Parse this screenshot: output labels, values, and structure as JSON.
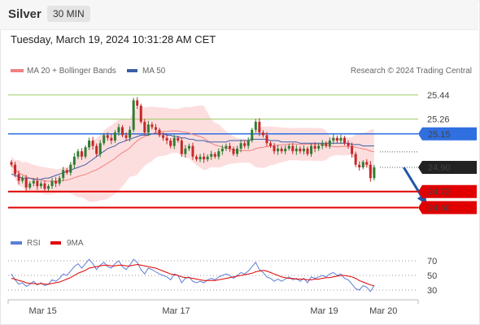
{
  "header": {
    "asset": "Silver",
    "timeframe": "30 MIN",
    "timestamp": "Tuesday, March 19, 2024 10:31:28 AM CET"
  },
  "legend": {
    "ma20": "MA 20 + Bollinger Bands",
    "ma50": "MA 50",
    "credit": "Research © 2024 Trading Central",
    "rsi": "RSI",
    "rsi_ma": "9MA"
  },
  "colors": {
    "ma20": "#f08080",
    "ma50": "#3b5fa8",
    "band": "#fdd8d8",
    "bull": "#2e7d32",
    "bear": "#c62828",
    "resistance": "#9ccc65",
    "pivot": "#2f6fe0",
    "support": "#e00000",
    "arrow": "#2356a8",
    "rsi": "#5b7fd6",
    "rsi_ma": "#e00000",
    "current": "#222222"
  },
  "chart_data": {
    "type": "candlestick",
    "title": "Silver 30 MIN",
    "x_ticks": [
      "Mar 15",
      "Mar 17",
      "Mar 19",
      "Mar 20"
    ],
    "x_tick_index": [
      8.5,
      44.5,
      84.5,
      100.5
    ],
    "ylim": [
      24.5,
      25.5
    ],
    "levels": [
      {
        "label": "25.44",
        "value": 25.44,
        "kind": "resistance"
      },
      {
        "label": "25.26",
        "value": 25.26,
        "kind": "resistance"
      },
      {
        "label": "25.15",
        "value": 25.15,
        "kind": "pivot"
      },
      {
        "label": "24.72",
        "value": 24.72,
        "kind": "support"
      },
      {
        "label": "24.60",
        "value": 24.6,
        "kind": "support"
      }
    ],
    "current_price": {
      "label": "24.90",
      "value": 24.9
    },
    "forecast_arrow": {
      "from_index": 106,
      "from": 24.9,
      "to_index": 112,
      "to": 24.63
    },
    "closes": [
      24.92,
      24.85,
      24.8,
      24.82,
      24.75,
      24.78,
      24.8,
      24.76,
      24.78,
      24.74,
      24.76,
      24.8,
      24.78,
      24.82,
      24.88,
      24.86,
      24.92,
      24.98,
      25.02,
      24.98,
      25.05,
      25.1,
      25.06,
      25.0,
      25.08,
      25.14,
      25.12,
      25.1,
      25.16,
      25.2,
      25.14,
      25.12,
      25.18,
      25.4,
      25.36,
      25.24,
      25.16,
      25.22,
      25.2,
      25.18,
      25.14,
      25.12,
      25.1,
      25.06,
      25.12,
      25.1,
      25.0,
      25.04,
      25.06,
      24.98,
      24.96,
      24.98,
      24.96,
      24.98,
      25.0,
      24.98,
      25.02,
      25.04,
      25.06,
      25.04,
      25.0,
      25.04,
      25.08,
      25.06,
      25.1,
      25.18,
      25.24,
      25.16,
      25.14,
      25.08,
      25.06,
      25.02,
      25.04,
      25.02,
      25.04,
      25.06,
      25.02,
      25.04,
      25.02,
      25.04,
      25.0,
      25.06,
      25.04,
      25.06,
      25.08,
      25.06,
      25.1,
      25.12,
      25.1,
      25.12,
      25.08,
      25.06,
      25.0,
      24.92,
      24.9,
      24.94,
      24.92,
      24.82,
      24.9
    ],
    "ma50": [
      24.85,
      24.84,
      24.83,
      24.82,
      24.82,
      24.82,
      24.81,
      24.81,
      24.81,
      24.82,
      24.82,
      24.83,
      24.84,
      24.85,
      24.86,
      24.87,
      24.88,
      24.89,
      24.9,
      24.91,
      24.92,
      24.94,
      24.96,
      24.98,
      25.0,
      25.02,
      25.04,
      25.05,
      25.06,
      25.08,
      25.09,
      25.1,
      25.11,
      25.12,
      25.13,
      25.14,
      25.14,
      25.14,
      25.15,
      25.15,
      25.15,
      25.15,
      25.14,
      25.14,
      25.13,
      25.13,
      25.12,
      25.12,
      25.11,
      25.11,
      25.1,
      25.1,
      25.1,
      25.09,
      25.09,
      25.09,
      25.09,
      25.09,
      25.09,
      25.1,
      25.1,
      25.1,
      25.1,
      25.1,
      25.1,
      25.11,
      25.11,
      25.11,
      25.11,
      25.11,
      25.1,
      25.1,
      25.1,
      25.09,
      25.09,
      25.09,
      25.09,
      25.09,
      25.08,
      25.08,
      25.08,
      25.08,
      25.08,
      25.08,
      25.08,
      25.08,
      25.08,
      25.08,
      25.08,
      25.08,
      25.08,
      25.08,
      25.07,
      25.07,
      25.07,
      25.06,
      25.06,
      25.06,
      25.06
    ],
    "rsi": [
      52,
      44,
      38,
      40,
      35,
      38,
      42,
      37,
      40,
      36,
      38,
      44,
      42,
      46,
      52,
      50,
      56,
      62,
      66,
      60,
      66,
      72,
      66,
      58,
      64,
      68,
      62,
      60,
      66,
      70,
      62,
      58,
      64,
      72,
      68,
      58,
      52,
      60,
      58,
      55,
      52,
      50,
      48,
      44,
      52,
      50,
      40,
      46,
      48,
      42,
      40,
      42,
      40,
      44,
      46,
      44,
      48,
      50,
      52,
      50,
      46,
      50,
      54,
      52,
      56,
      62,
      68,
      58,
      54,
      48,
      46,
      42,
      45,
      42,
      45,
      48,
      44,
      46,
      42,
      46,
      40,
      48,
      46,
      48,
      50,
      48,
      52,
      54,
      50,
      52,
      46,
      44,
      38,
      32,
      30,
      36,
      34,
      28,
      36
    ],
    "rsi_ma": [
      46,
      45,
      43,
      42,
      40,
      39,
      39,
      38,
      39,
      38,
      38,
      39,
      40,
      41,
      43,
      45,
      47,
      50,
      53,
      55,
      57,
      60,
      61,
      62,
      63,
      64,
      64,
      63,
      63,
      64,
      64,
      63,
      63,
      64,
      65,
      64,
      63,
      62,
      61,
      60,
      58,
      56,
      54,
      52,
      51,
      50,
      48,
      47,
      47,
      46,
      45,
      44,
      43,
      43,
      43,
      43,
      44,
      45,
      46,
      47,
      48,
      49,
      50,
      51,
      52,
      53,
      55,
      56,
      57,
      56,
      54,
      52,
      50,
      48,
      47,
      46,
      46,
      45,
      45,
      45,
      44,
      44,
      45,
      45,
      46,
      47,
      47,
      48,
      49,
      50,
      50,
      49,
      48,
      46,
      43,
      41,
      39,
      37,
      36
    ],
    "rsi_ticks": [
      70,
      50,
      30
    ]
  }
}
